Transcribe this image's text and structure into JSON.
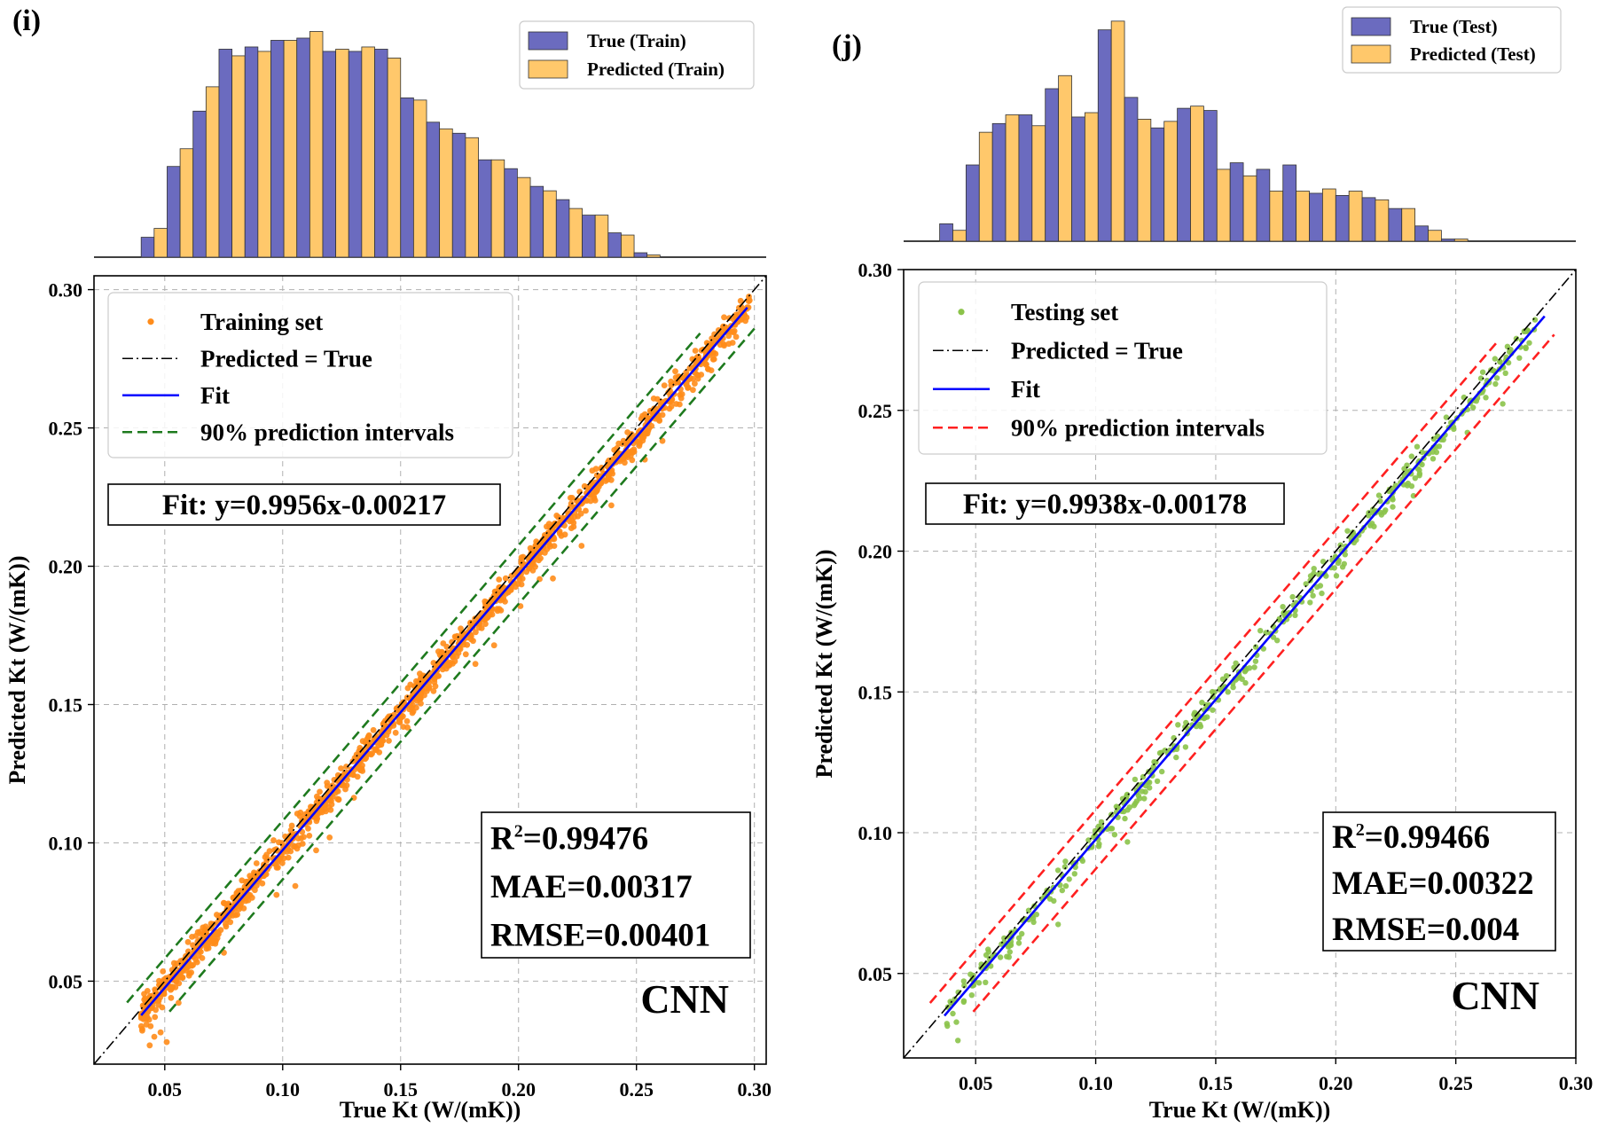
{
  "colors": {
    "true_bar": "#6b6bbf",
    "pred_bar": "#ffc86b",
    "train_points": "#ff8c1a",
    "test_points": "#8bc34a",
    "fit": "#0000ff",
    "identity": "#000000",
    "train_pi": "#1e7a1e",
    "test_pi": "#ff2020",
    "grid": "#b0b0b0"
  },
  "chart_data": [
    {
      "panel": "(i)",
      "type": "scatter",
      "xlabel": "True Kt (W/(mK))",
      "ylabel": "Predicted Kt (W/(mK))",
      "xlim": [
        0.02,
        0.305
      ],
      "ylim": [
        0.02,
        0.305
      ],
      "xticks": [
        "0.05",
        "0.10",
        "0.15",
        "0.20",
        "0.25",
        "0.30"
      ],
      "yticks": [
        "0.05",
        "0.10",
        "0.15",
        "0.20",
        "0.25",
        "0.30"
      ],
      "grid": true,
      "legend_position": "top-left",
      "legend": [
        "Training set",
        "Predicted = True",
        "Fit",
        "90% prediction intervals"
      ],
      "fit_label": "Fit: y=0.9956x-0.00217",
      "fit": {
        "slope": 0.9956,
        "intercept": -0.00217,
        "x_range": [
          0.04,
          0.297
        ]
      },
      "pi_half_width": 0.0106,
      "metrics": [
        "=0.99476",
        "MAE=0.00317",
        "RMSE=0.00401"
      ],
      "r2_prefix": "R",
      "r2_sup": "2",
      "model": "CNN",
      "points": {
        "n": 1400,
        "x_range": [
          0.04,
          0.298
        ],
        "seed": 7,
        "noise": 0.0042
      },
      "histogram": {
        "legend": [
          "True (Train)",
          "Predicted (Train)"
        ],
        "bins": [
          0.04,
          0.051,
          0.062,
          0.073,
          0.084,
          0.095,
          0.106,
          0.117,
          0.128,
          0.139,
          0.15,
          0.161,
          0.172,
          0.183,
          0.194,
          0.205,
          0.216,
          0.227,
          0.238,
          0.249,
          0.26,
          0.271,
          0.282
        ],
        "true_counts": [
          9,
          41,
          66,
          94,
          95,
          98,
          99,
          93,
          93,
          94,
          72,
          61,
          56,
          44,
          40,
          32,
          26,
          19,
          11,
          2,
          0,
          0
        ],
        "pred_counts": [
          13,
          49,
          77,
          91,
          93,
          98,
          102,
          94,
          95,
          90,
          71,
          58,
          54,
          44,
          36,
          30,
          22,
          19,
          10,
          1,
          0,
          0
        ]
      }
    },
    {
      "panel": "(j)",
      "type": "scatter",
      "xlabel": "True Kt (W/(mK))",
      "ylabel": "Predicted Kt (W/(mK))",
      "xlim": [
        0.02,
        0.3
      ],
      "ylim": [
        0.02,
        0.3
      ],
      "xticks": [
        "0.05",
        "0.10",
        "0.15",
        "0.20",
        "0.25",
        "0.30"
      ],
      "yticks": [
        "0.05",
        "0.10",
        "0.15",
        "0.20",
        "0.25",
        "0.30"
      ],
      "grid": true,
      "legend_position": "top-left",
      "legend": [
        "Testing set",
        "Predicted = True",
        "Fit",
        "90% prediction intervals"
      ],
      "fit_label": "Fit: y=0.9938x-0.00178",
      "fit": {
        "slope": 0.9938,
        "intercept": -0.00178,
        "x_range": [
          0.037,
          0.287
        ]
      },
      "pi_half_width": 0.0105,
      "metrics": [
        "=0.99466",
        "MAE=0.00322",
        "RMSE=0.004"
      ],
      "r2_prefix": "R",
      "r2_sup": "2",
      "model": "CNN",
      "points": {
        "n": 420,
        "x_range": [
          0.038,
          0.283
        ],
        "seed": 11,
        "noise": 0.0042
      },
      "histogram": {
        "legend": [
          "True (Test)",
          "Predicted (Test)"
        ],
        "bins": [
          0.035,
          0.046,
          0.057,
          0.068,
          0.079,
          0.09,
          0.101,
          0.112,
          0.123,
          0.134,
          0.145,
          0.156,
          0.167,
          0.178,
          0.189,
          0.2,
          0.211,
          0.222,
          0.233,
          0.244,
          0.255,
          0.266,
          0.277
        ],
        "true_counts": [
          8,
          35,
          54,
          58,
          70,
          57,
          97,
          66,
          52,
          61,
          60,
          36,
          33,
          35,
          22,
          21,
          20,
          15,
          7,
          1,
          0,
          0
        ],
        "pred_counts": [
          5,
          50,
          58,
          53,
          76,
          59,
          101,
          56,
          55,
          62,
          33,
          30,
          23,
          23,
          24,
          23,
          19,
          15,
          5,
          1,
          0,
          0
        ]
      }
    }
  ]
}
